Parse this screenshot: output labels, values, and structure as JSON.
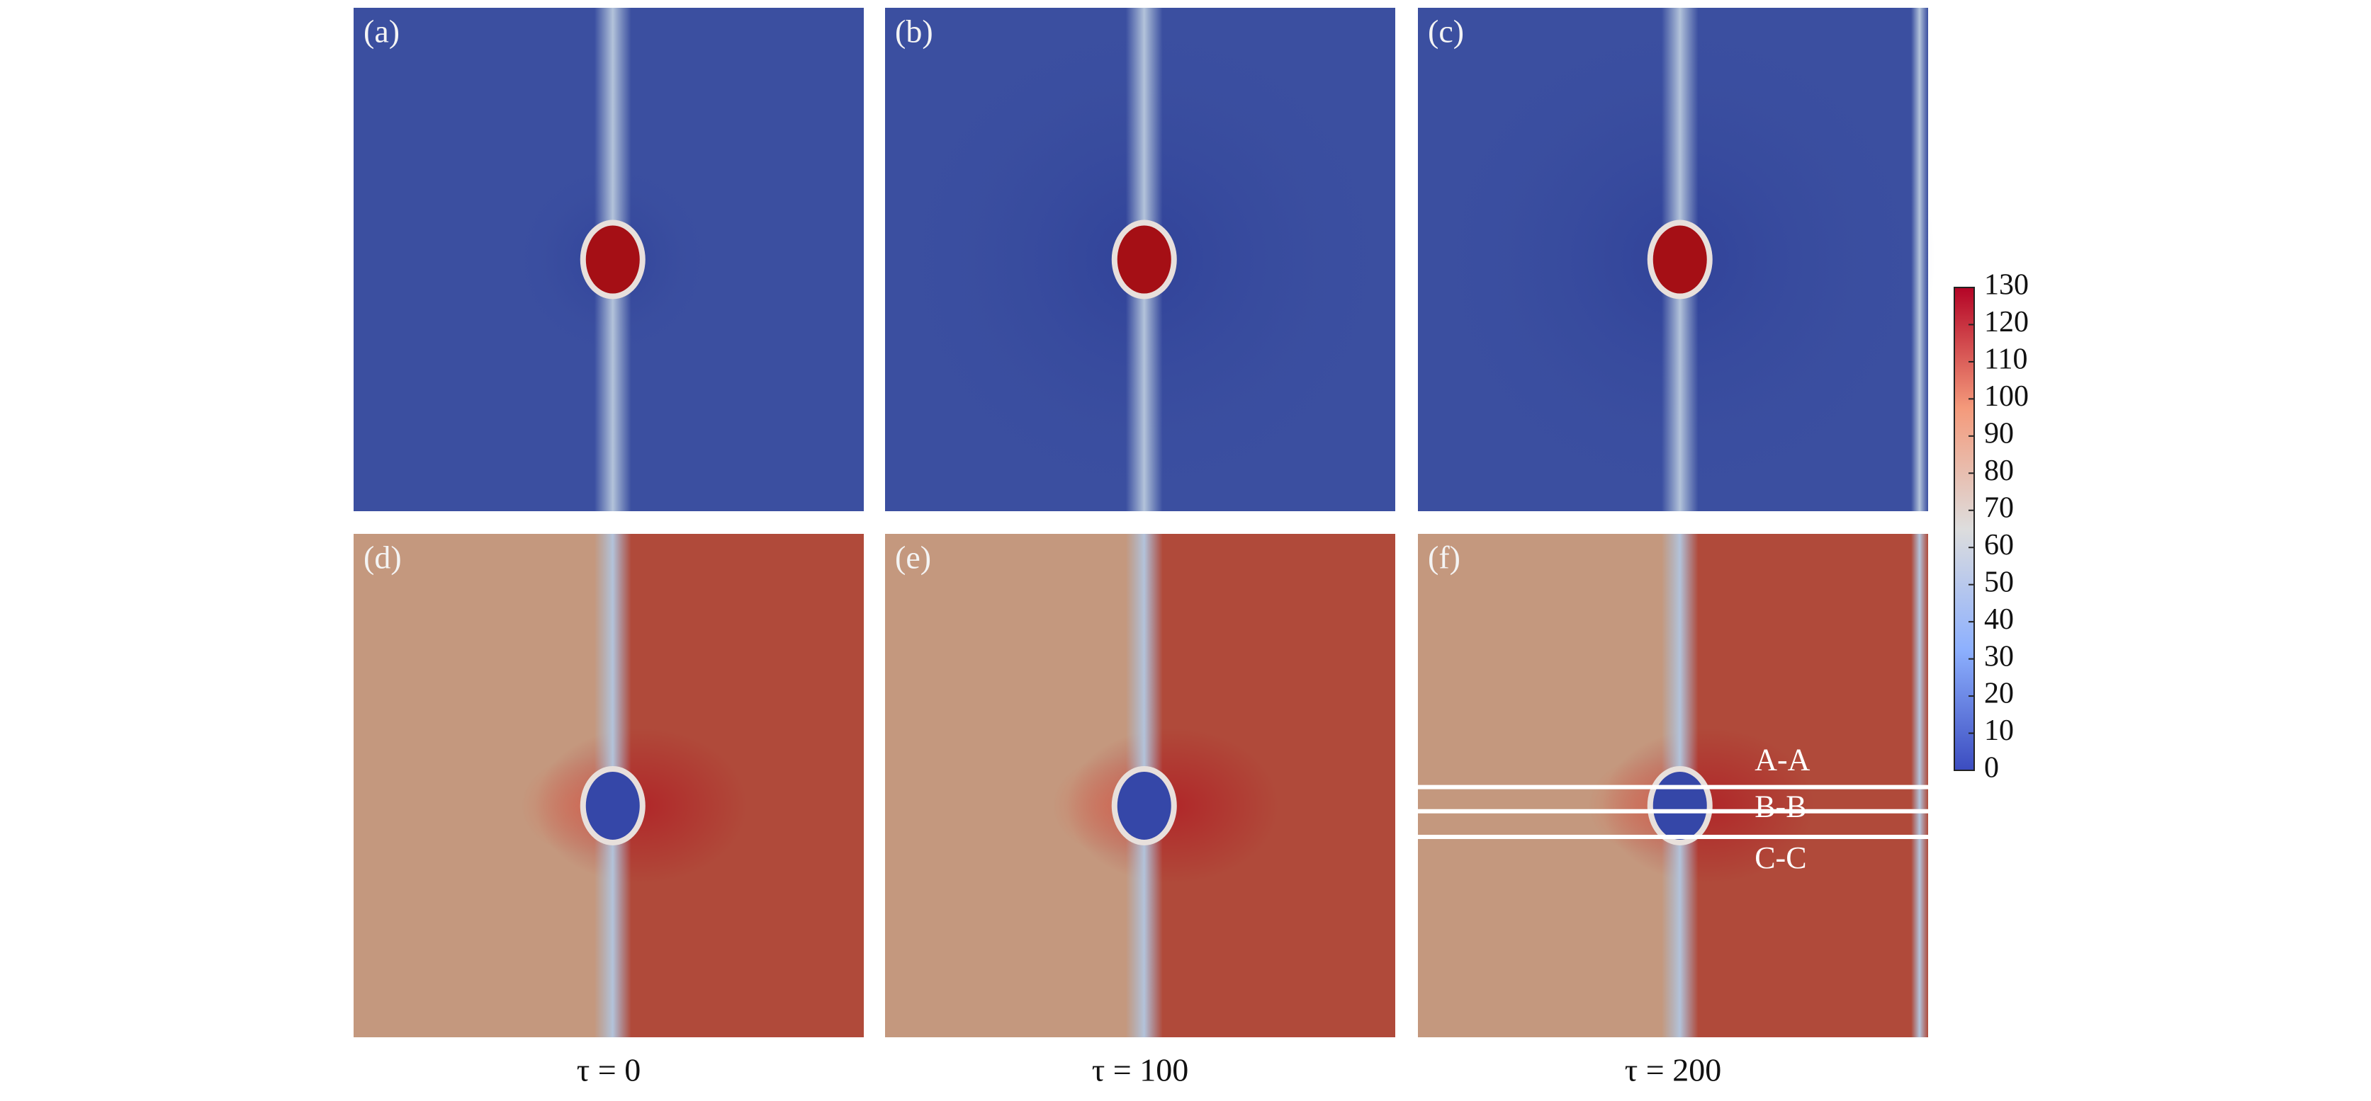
{
  "panels": [
    {
      "label": "(a)"
    },
    {
      "label": "(b)"
    },
    {
      "label": "(c)"
    },
    {
      "label": "(d)"
    },
    {
      "label": "(e)"
    },
    {
      "label": "(f)",
      "sections": [
        "A-A",
        "B-B",
        "C-C"
      ]
    }
  ],
  "time_labels": [
    "τ = 0",
    "τ = 100",
    "τ = 200"
  ],
  "colorbar": {
    "lim": [
      0,
      130
    ],
    "ticks": [
      0,
      10,
      20,
      30,
      40,
      50,
      60,
      70,
      80,
      90,
      100,
      110,
      120,
      130
    ]
  }
}
